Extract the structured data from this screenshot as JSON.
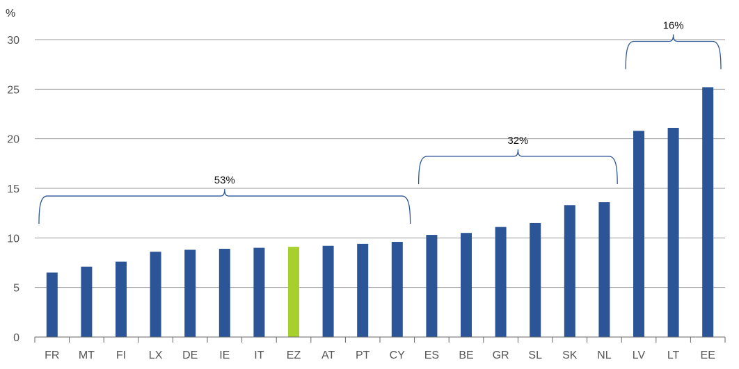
{
  "chart_data": {
    "type": "bar",
    "y_unit": "%",
    "categories": [
      "FR",
      "MT",
      "FI",
      "LX",
      "DE",
      "IE",
      "IT",
      "EZ",
      "AT",
      "PT",
      "CY",
      "ES",
      "BE",
      "GR",
      "SL",
      "SK",
      "NL",
      "LV",
      "LT",
      "EE"
    ],
    "values": [
      6.5,
      7.1,
      7.6,
      8.6,
      8.8,
      8.9,
      9.0,
      9.1,
      9.2,
      9.4,
      9.6,
      10.3,
      10.5,
      11.1,
      11.5,
      13.3,
      13.6,
      20.8,
      21.1,
      25.2
    ],
    "highlight_category": "EZ",
    "colors": {
      "bar": "#2b5597",
      "highlight": "#a8d02d"
    },
    "ylim": [
      0,
      30
    ],
    "yticks": [
      0,
      5,
      10,
      15,
      20,
      25,
      30
    ],
    "grid": true,
    "groups": [
      {
        "label": "53%",
        "from": "FR",
        "to": "CY"
      },
      {
        "label": "32%",
        "from": "ES",
        "to": "NL"
      },
      {
        "label": "16%",
        "from": "LV",
        "to": "EE"
      }
    ]
  }
}
